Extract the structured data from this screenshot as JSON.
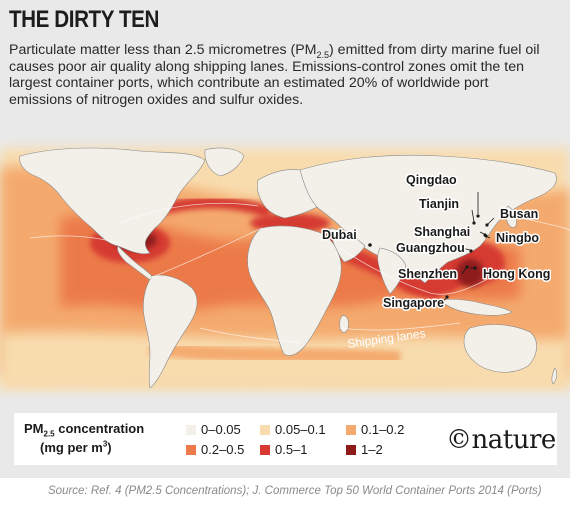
{
  "header": {
    "title": "THE DIRTY TEN",
    "description_part1": "Particulate matter less than 2.5 micrometres (PM",
    "description_sub": "2.5",
    "description_part2": ") emitted from dirty marine fuel oil causes poor air quality along shipping lanes. Emissions-control zones omit the ten largest container ports, which contribute an estimated 20% of worldwide port emissions of nitrogen oxides and sulfur oxides."
  },
  "map": {
    "shipping_lanes_label": "Shipping lanes",
    "ports": [
      {
        "name": "Qingdao"
      },
      {
        "name": "Tianjin"
      },
      {
        "name": "Busan"
      },
      {
        "name": "Shanghai"
      },
      {
        "name": "Ningbo"
      },
      {
        "name": "Dubai"
      },
      {
        "name": "Guangzhou"
      },
      {
        "name": "Shenzhen"
      },
      {
        "name": "Hong Kong"
      },
      {
        "name": "Singapore"
      }
    ]
  },
  "legend": {
    "title_main": "PM",
    "title_sub": "2.5",
    "title_rest": " concentration",
    "unit_main": "(mg per m",
    "unit_sup": "3",
    "unit_rest": ")",
    "bins": [
      {
        "label": "0–0.05",
        "color": "#f3f0ea"
      },
      {
        "label": "0.05–0.1",
        "color": "#f8dcae"
      },
      {
        "label": "0.1–0.2",
        "color": "#f4aa6e"
      },
      {
        "label": "0.2–0.5",
        "color": "#ec7a4a"
      },
      {
        "label": "0.5–1",
        "color": "#d63a33"
      },
      {
        "label": "1–2",
        "color": "#8e1a1a"
      }
    ]
  },
  "brand": "©nature",
  "source": "Source: Ref. 4 (PM2.5 Concentrations); J. Commerce Top 50 World Container Ports 2014 (Ports)"
}
